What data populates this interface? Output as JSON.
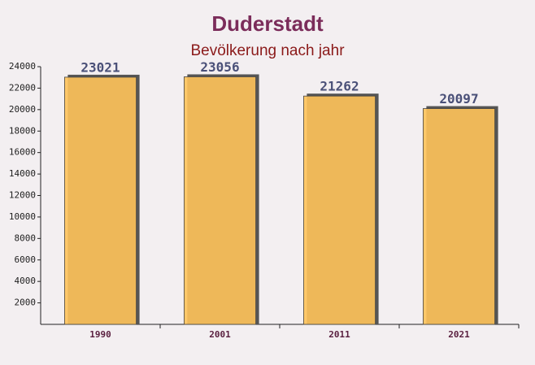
{
  "chart_data": {
    "type": "bar",
    "title": "Duderstadt",
    "subtitle": "Bevölkerung nach jahr",
    "categories": [
      "1990",
      "2001",
      "2011",
      "2021"
    ],
    "values": [
      23021,
      23056,
      21262,
      20097
    ],
    "color": "#ffc35a",
    "ylim": [
      0,
      24000
    ],
    "yticks": [
      2000,
      4000,
      6000,
      8000,
      10000,
      12000,
      14000,
      16000,
      18000,
      20000,
      22000,
      24000
    ],
    "grid": false
  }
}
